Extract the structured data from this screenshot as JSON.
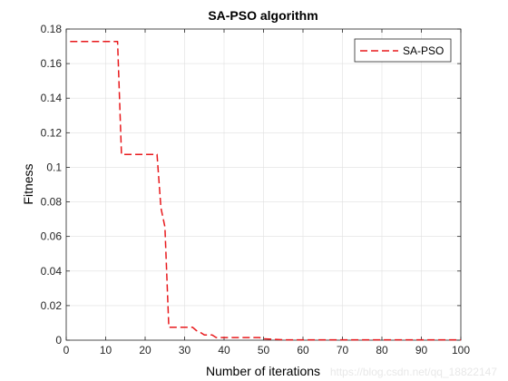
{
  "chart_data": {
    "type": "line",
    "title": "SA-PSO algorithm",
    "xlabel": "Number of iterations",
    "ylabel": "Fitness",
    "xlim": [
      0,
      100
    ],
    "ylim": [
      0,
      0.18
    ],
    "xticks": [
      0,
      10,
      20,
      30,
      40,
      50,
      60,
      70,
      80,
      90,
      100
    ],
    "yticks": [
      0,
      0.02,
      0.04,
      0.06,
      0.08,
      0.1,
      0.12,
      0.14,
      0.16,
      0.18
    ],
    "xtick_labels": [
      "0",
      "10",
      "20",
      "30",
      "40",
      "50",
      "60",
      "70",
      "80",
      "90",
      "100"
    ],
    "ytick_labels": [
      "0",
      "0.02",
      "0.04",
      "0.06",
      "0.08",
      "0.1",
      "0.12",
      "0.14",
      "0.16",
      "0.18"
    ],
    "grid": true,
    "legend_position": "top-right",
    "series": [
      {
        "name": "SA-PSO",
        "color": "#e8191c",
        "line_style": "dashed",
        "x": [
          1,
          13,
          14,
          23,
          24,
          25,
          26,
          27,
          32,
          33,
          34,
          35,
          37,
          38,
          49,
          50,
          55,
          100
        ],
        "y": [
          0.1728,
          0.1728,
          0.1075,
          0.1075,
          0.0765,
          0.0655,
          0.0075,
          0.0075,
          0.0075,
          0.0055,
          0.0045,
          0.003,
          0.003,
          0.0015,
          0.0015,
          0.0008,
          0.0002,
          0.0002
        ]
      }
    ]
  },
  "watermark": "https://blog.csdn.net/qq_18822147"
}
